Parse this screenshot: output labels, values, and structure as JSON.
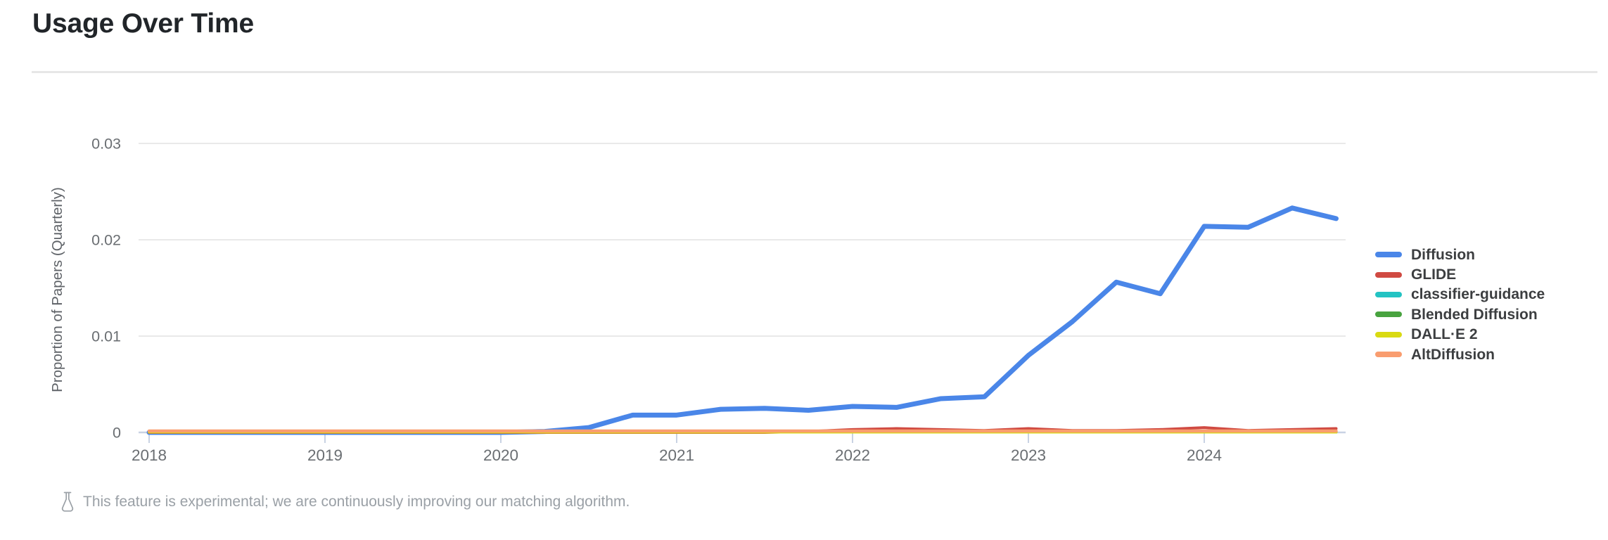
{
  "header": {
    "title": "Usage Over Time"
  },
  "footer": {
    "icon": "flask-icon",
    "note": "This feature is experimental; we are continuously improving our matching algorithm."
  },
  "chart_data": {
    "type": "line",
    "title": "Usage Over Time",
    "xlabel": "",
    "ylabel": "Proportion of Papers (Quarterly)",
    "grid": true,
    "legend_position": "right",
    "xlim": [
      2018,
      2024.85
    ],
    "ylim": [
      0,
      0.0315
    ],
    "x_ticks": [
      {
        "value": 2018,
        "label": "2018"
      },
      {
        "value": 2019,
        "label": "2019"
      },
      {
        "value": 2020,
        "label": "2020"
      },
      {
        "value": 2021,
        "label": "2021"
      },
      {
        "value": 2022,
        "label": "2022"
      },
      {
        "value": 2023,
        "label": "2023"
      },
      {
        "value": 2024,
        "label": "2024"
      }
    ],
    "y_ticks": [
      {
        "value": 0,
        "label": "0"
      },
      {
        "value": 0.01,
        "label": "0.01"
      },
      {
        "value": 0.02,
        "label": "0.02"
      },
      {
        "value": 0.03,
        "label": "0.03"
      }
    ],
    "x": [
      2018.0,
      2018.25,
      2018.5,
      2018.75,
      2019.0,
      2019.25,
      2019.5,
      2019.75,
      2020.0,
      2020.25,
      2020.5,
      2020.75,
      2021.0,
      2021.25,
      2021.5,
      2021.75,
      2022.0,
      2022.25,
      2022.5,
      2022.75,
      2023.0,
      2023.25,
      2023.5,
      2023.75,
      2024.0,
      2024.25,
      2024.5,
      2024.75
    ],
    "series": [
      {
        "name": "Diffusion",
        "color": "#4a86e8",
        "stroke_width": 7,
        "values": [
          0,
          0,
          0,
          0,
          0,
          0,
          0,
          0,
          0,
          0.0001,
          0.0005,
          0.0018,
          0.0018,
          0.0024,
          0.0025,
          0.0023,
          0.0027,
          0.0026,
          0.0035,
          0.0037,
          0.008,
          0.0115,
          0.0156,
          0.0144,
          0.0214,
          0.0213,
          0.0233,
          0.0222
        ]
      },
      {
        "name": "GLIDE",
        "color": "#d04a42",
        "stroke_width": 4,
        "values": [
          0,
          0,
          0,
          0,
          0,
          0,
          0,
          0,
          0,
          0,
          0,
          0,
          0,
          0,
          0,
          0.0001,
          0.0003,
          0.0004,
          0.0003,
          0.0002,
          0.0004,
          0.0002,
          0.0002,
          0.0003,
          0.0005,
          0.0002,
          0.0003,
          0.0004
        ]
      },
      {
        "name": "classifier-guidance",
        "color": "#23c3c3",
        "stroke_width": 4,
        "values": [
          4e-05,
          4e-05,
          4e-05,
          4e-05,
          4e-05,
          4e-05,
          4e-05,
          4e-05,
          4e-05,
          4e-05,
          4e-05,
          4e-05,
          4e-05,
          4e-05,
          4e-05,
          4e-05,
          4e-05,
          4e-05,
          4e-05,
          4e-05,
          4e-05,
          4e-05,
          4e-05,
          4e-05,
          4e-05,
          4e-05,
          4e-05,
          4e-05
        ]
      },
      {
        "name": "Blended Diffusion",
        "color": "#48a33f",
        "stroke_width": 4,
        "values": [
          4e-05,
          4e-05,
          4e-05,
          4e-05,
          4e-05,
          4e-05,
          4e-05,
          4e-05,
          4e-05,
          4e-05,
          4e-05,
          4e-05,
          4e-05,
          4e-05,
          4e-05,
          4e-05,
          4e-05,
          4e-05,
          4e-05,
          4e-05,
          4e-05,
          4e-05,
          4e-05,
          4e-05,
          4e-05,
          4e-05,
          4e-05,
          4e-05
        ]
      },
      {
        "name": "DALL·E 2",
        "color": "#d9da12",
        "stroke_width": 4,
        "values": [
          4e-05,
          4e-05,
          4e-05,
          4e-05,
          4e-05,
          4e-05,
          4e-05,
          4e-05,
          4e-05,
          4e-05,
          4e-05,
          4e-05,
          4e-05,
          4e-05,
          4e-05,
          4e-05,
          4e-05,
          4e-05,
          4e-05,
          4e-05,
          4e-05,
          4e-05,
          4e-05,
          4e-05,
          4e-05,
          4e-05,
          4e-05,
          4e-05
        ]
      },
      {
        "name": "AltDiffusion",
        "color": "#f99d6f",
        "stroke_width": 4.5,
        "values": [
          0.00015,
          0.00015,
          0.00015,
          0.00015,
          0.00015,
          0.00015,
          0.00015,
          0.00015,
          0.00015,
          0.00015,
          0.00015,
          0.00015,
          0.00015,
          0.00015,
          0.00015,
          0.00015,
          0.00015,
          0.00015,
          0.00015,
          0.00015,
          0.00015,
          0.00015,
          0.00015,
          0.00015,
          0.00015,
          0.00015,
          0.00015,
          0.00015
        ]
      }
    ]
  }
}
